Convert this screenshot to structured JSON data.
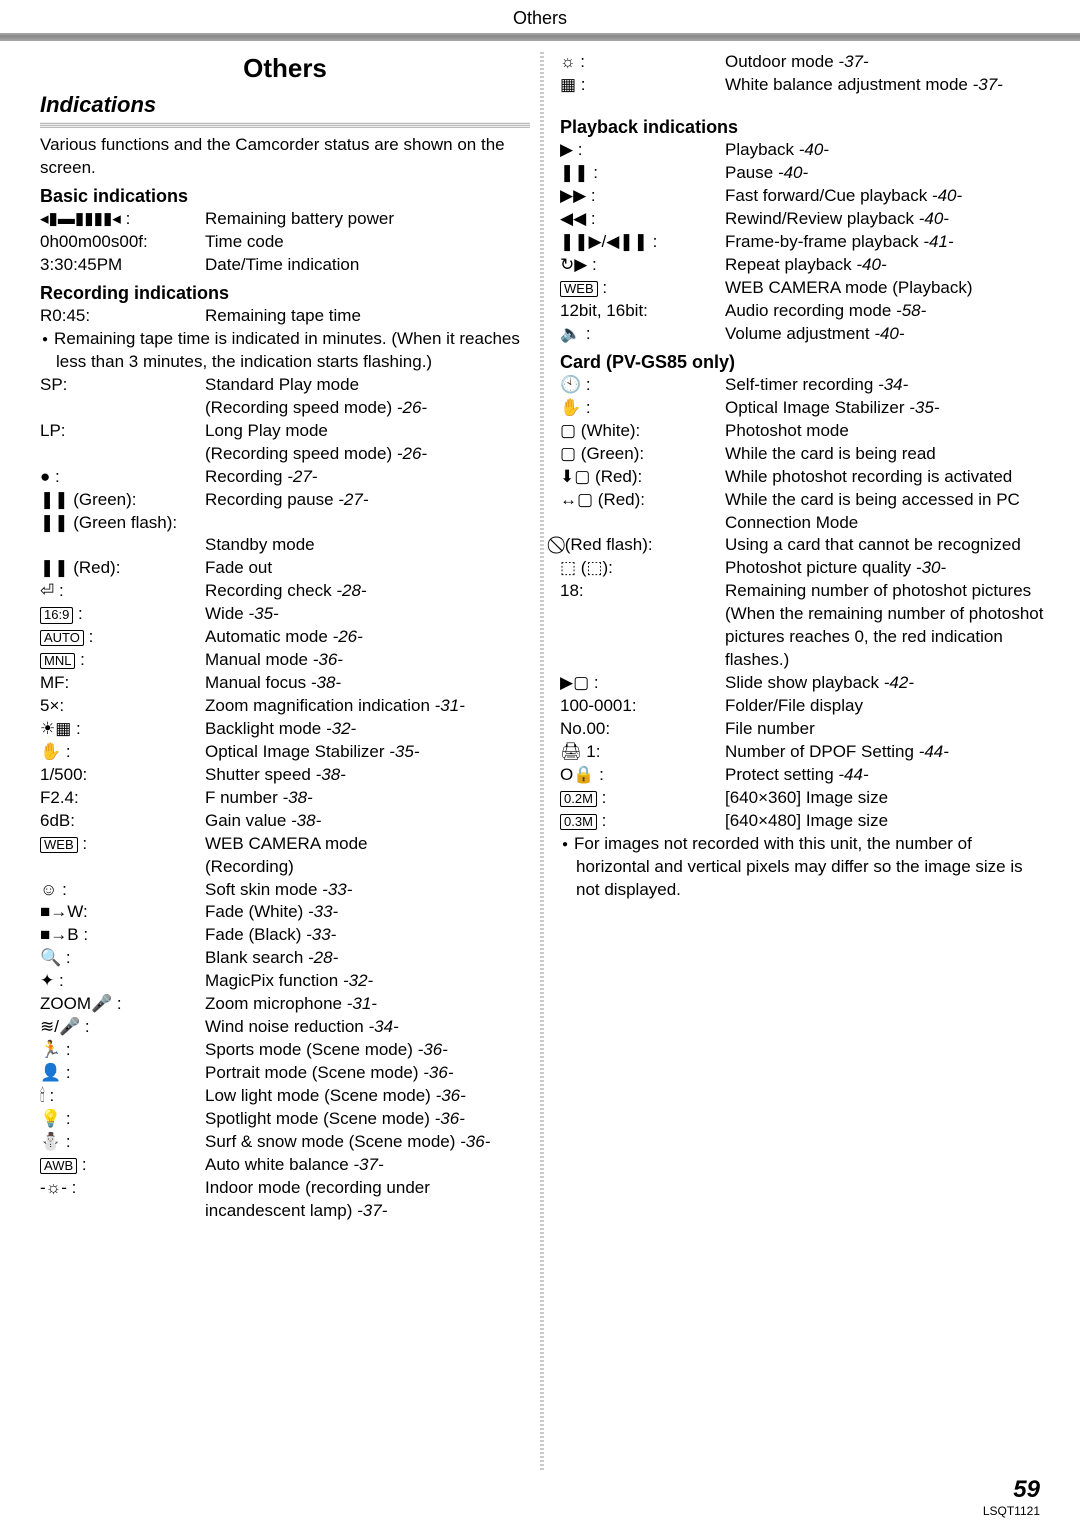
{
  "header": "Others",
  "section_title": "Others",
  "indications_title": "Indications",
  "intro": "Various functions and the Camcorder status are shown on the screen.",
  "groups": {
    "basic": "Basic indications",
    "recording": "Recording indications",
    "playback": "Playback indications",
    "card": "Card (PV-GS85 only)"
  },
  "left": {
    "basic": [
      {
        "label": "◂▮▬▮▮▮▮◂ :",
        "desc": "Remaining battery power"
      },
      {
        "label": "0h00m00s00f:",
        "desc": "Time code"
      },
      {
        "label": "3:30:45PM",
        "desc": "Date/Time indication"
      }
    ],
    "recording_r045": {
      "label": "R0:45:",
      "desc": "Remaining tape time"
    },
    "recording_note": "Remaining tape time is indicated in minutes. (When it reaches less than 3 minutes, the indication starts flashing.)",
    "recording_items": [
      {
        "label": "SP:",
        "desc": "Standard Play mode",
        "desc2": "(Recording speed mode)",
        "ref": "-26-"
      },
      {
        "label": "LP:",
        "desc": "Long Play mode",
        "desc2": "(Recording speed mode)",
        "ref": "-26-"
      },
      {
        "label": "● :",
        "desc": "Recording",
        "ref": "-27-"
      },
      {
        "label": "❚❚ (Green):",
        "desc": "Recording pause",
        "ref": "-27-"
      },
      {
        "label": "❚❚ (Green flash):",
        "desc": "",
        "desc2": "Standby mode"
      },
      {
        "label": "❚❚ (Red):",
        "desc": "Fade out"
      },
      {
        "label": "⏎ :",
        "desc": "Recording check",
        "ref": "-28-"
      },
      {
        "label": "[16:9] :",
        "boxed": "16:9",
        "desc": "Wide",
        "ref": "-35-"
      },
      {
        "label": "[AUTO] :",
        "boxed": "AUTO",
        "desc": "Automatic mode",
        "ref": "-26-"
      },
      {
        "label": "[MNL] :",
        "boxed": "MNL",
        "desc": "Manual mode",
        "ref": "-36-"
      },
      {
        "label": "MF:",
        "desc": "Manual focus",
        "ref": "-38-"
      },
      {
        "label": "5×:",
        "desc": "Zoom magnification indication",
        "ref": "-31-"
      },
      {
        "label": "☀▦ :",
        "desc": "Backlight mode",
        "ref": "-32-"
      },
      {
        "label": "✋ :",
        "desc": "Optical Image Stabilizer",
        "ref": "-35-"
      },
      {
        "label": "1/500:",
        "desc": "Shutter speed",
        "ref": "-38-"
      },
      {
        "label": "F2.4:",
        "desc": "F number",
        "ref": "-38-"
      },
      {
        "label": "6dB:",
        "desc": "Gain value",
        "ref": "-38-"
      },
      {
        "label": "[WEB] :",
        "boxed": "WEB",
        "desc": "WEB CAMERA mode",
        "desc2": "(Recording)"
      },
      {
        "label": "☺ :",
        "desc": "Soft skin mode",
        "ref": "-33-"
      },
      {
        "label": "■→W:",
        "desc": "Fade (White)",
        "ref": "-33-"
      },
      {
        "label": "■→B :",
        "desc": "Fade (Black)",
        "ref": "-33-"
      },
      {
        "label": "🔍 :",
        "desc": "Blank search",
        "ref": "-28-"
      },
      {
        "label": "✦ :",
        "desc": "MagicPix function",
        "ref": "-32-"
      },
      {
        "label": "ZOOM🎤 :",
        "desc": "Zoom microphone",
        "ref": "-31-"
      },
      {
        "label": "≋/🎤 :",
        "desc": "Wind noise reduction",
        "ref": "-34-"
      },
      {
        "label": "🏃 :",
        "desc": "Sports mode (Scene mode)",
        "ref": "-36-"
      },
      {
        "label": "👤 :",
        "desc": "Portrait mode (Scene mode)",
        "ref": "-36-"
      },
      {
        "label": "🕯 :",
        "desc": "Low light mode (Scene mode)",
        "ref": "-36-"
      },
      {
        "label": "💡 :",
        "desc": "Spotlight mode (Scene mode)",
        "ref": "-36-"
      },
      {
        "label": "⛄ :",
        "desc": "Surf & snow mode (Scene mode)",
        "ref": "-36-"
      },
      {
        "label": "[AWB] :",
        "boxed": "AWB",
        "desc": "Auto white balance",
        "ref": "-37-"
      },
      {
        "label": "-☼- :",
        "desc": "Indoor mode (recording under incandescent lamp)",
        "ref": "-37-"
      }
    ]
  },
  "right_top": [
    {
      "label": "☼ :",
      "desc": "Outdoor mode",
      "ref": "-37-"
    },
    {
      "label": "▦ :",
      "desc": "White balance adjustment mode",
      "ref": "-37-"
    }
  ],
  "playback": [
    {
      "label": "▶ :",
      "desc": "Playback",
      "ref": "-40-"
    },
    {
      "label": "❚❚ :",
      "desc": "Pause",
      "ref": "-40-"
    },
    {
      "label": "▶▶ :",
      "desc": "Fast forward/Cue playback",
      "ref": "-40-"
    },
    {
      "label": "◀◀ :",
      "desc": "Rewind/Review playback",
      "ref": "-40-"
    },
    {
      "label": "❚❚▶/◀❚❚ :",
      "desc": "Frame-by-frame playback",
      "ref": "-41-"
    },
    {
      "label": "↻▶ :",
      "desc": "Repeat playback",
      "ref": "-40-"
    },
    {
      "label": "[WEB] :",
      "boxed": "WEB",
      "desc": "WEB CAMERA mode (Playback)"
    },
    {
      "label": "12bit, 16bit:",
      "desc": "Audio recording mode",
      "ref": "-58-"
    },
    {
      "label": "🔈 :",
      "desc": "Volume adjustment",
      "ref": "-40-"
    }
  ],
  "card": [
    {
      "label": "🕙 :",
      "desc": "Self-timer recording",
      "ref": "-34-"
    },
    {
      "label": "✋ :",
      "desc": "Optical Image Stabilizer",
      "ref": "-35-"
    },
    {
      "label": "▢ (White):",
      "desc": "Photoshot mode"
    },
    {
      "label": "▢ (Green):",
      "desc": "While the card is being read"
    },
    {
      "label": "⬇▢ (Red):",
      "desc": "While photoshot recording is activated"
    },
    {
      "label": "↔▢ (Red):",
      "desc": "While the card is being accessed in PC Connection Mode"
    },
    {
      "label": "⃠ (Red flash):",
      "desc": "Using a card that cannot be recognized"
    },
    {
      "label": "⬚ (⬚):",
      "desc": "Photoshot picture quality",
      "ref": "-30-"
    },
    {
      "label": "18:",
      "desc": "Remaining number of photoshot pictures (When the remaining number of photoshot pictures reaches 0, the red indication flashes.)"
    },
    {
      "label": "▶▢ :",
      "desc": "Slide show playback",
      "ref": "-42-"
    },
    {
      "label": "100-0001:",
      "desc": "Folder/File display"
    },
    {
      "label": "No.00:",
      "desc": "File number"
    },
    {
      "label": "🖨 1:",
      "desc": "Number of DPOF Setting",
      "ref": "-44-"
    },
    {
      "label": "O🔒 :",
      "desc": "Protect setting",
      "ref": "-44-"
    },
    {
      "label": "[0.2M] :",
      "boxed": "0.2M",
      "desc": "[640×360] Image size"
    },
    {
      "label": "[0.3M] :",
      "boxed": "0.3M",
      "desc": "[640×480] Image size"
    }
  ],
  "card_note": "For images not recorded with this unit, the number of horizontal and vertical pixels may differ so the image size is not displayed.",
  "footer": {
    "page": "59",
    "code": "LSQT1121"
  }
}
